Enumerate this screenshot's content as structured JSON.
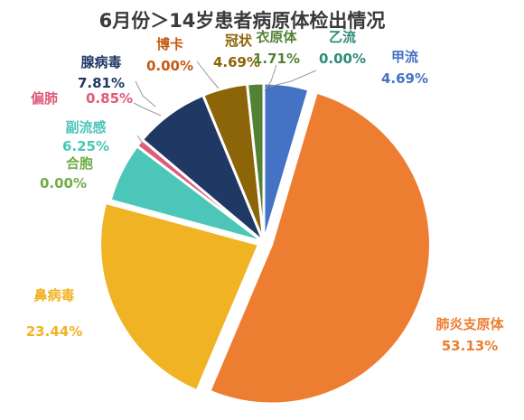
{
  "chart_data": {
    "type": "pie",
    "title": "6月份＞14岁患者病原体检出情况",
    "slices": [
      {
        "label": "甲流",
        "value_label": "4.69%",
        "value": 4.69,
        "color": "#4472C4"
      },
      {
        "label": "肺炎支原体",
        "value_label": "53.13%",
        "value": 53.13,
        "color": "#ED7D31"
      },
      {
        "label": "鼻病毒",
        "value_label": "23.44%",
        "value": 23.44,
        "color": "#F0B323"
      },
      {
        "label": "合胞",
        "value_label": "0.00%",
        "value": 0.0,
        "color": "#70AD47"
      },
      {
        "label": "副流感",
        "value_label": "6.25%",
        "value": 6.25,
        "color": "#4BC6B9"
      },
      {
        "label": "偏肺",
        "value_label": "0.85%",
        "value": 0.85,
        "color": "#E05A7A"
      },
      {
        "label": "腺病毒",
        "value_label": "7.81%",
        "value": 7.81,
        "color": "#203864"
      },
      {
        "label": "博卡",
        "value_label": "0.00%",
        "value": 0.0,
        "color": "#C55A11"
      },
      {
        "label": "冠状",
        "value_label": "4.69%",
        "value": 4.69,
        "color": "#8B6508"
      },
      {
        "label": "衣原体",
        "value_label": "1.71%",
        "value": 1.71,
        "color": "#548235"
      },
      {
        "label": "乙流",
        "value_label": "0.00%",
        "value": 0.0,
        "color": "#2E8B7A"
      }
    ],
    "legend": "none"
  }
}
